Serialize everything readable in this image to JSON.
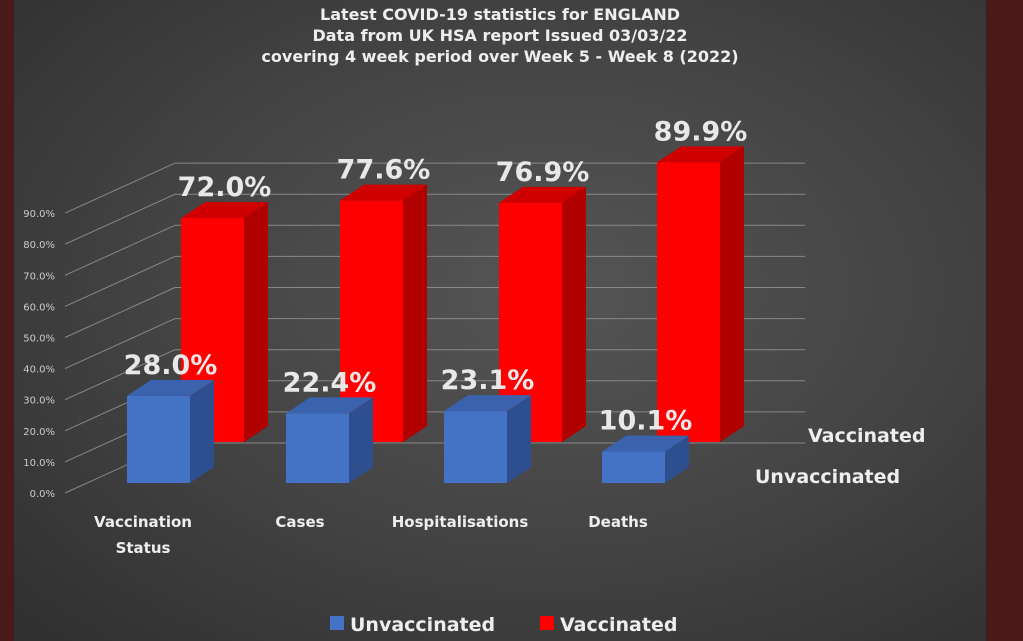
{
  "chart_data": {
    "type": "bar",
    "title": [
      "Latest COVID-19 statistics for ENGLAND",
      "Data from UK HSA report Issued 03/03/22",
      "covering 4 week period over Week 5 - Week 8 (2022)"
    ],
    "categories": [
      [
        "Vaccination",
        "Status"
      ],
      [
        "Cases"
      ],
      [
        "Hospitalisations"
      ],
      [
        "Deaths"
      ]
    ],
    "series": [
      {
        "name": "Unvaccinated",
        "values": [
          28.0,
          22.4,
          23.1,
          10.1
        ],
        "labels": [
          "28.0%",
          "22.4%",
          "23.1%",
          "10.1%"
        ],
        "color": "#4472c4"
      },
      {
        "name": "Vaccinated",
        "values": [
          72.0,
          77.6,
          76.9,
          89.9
        ],
        "labels": [
          "72.0%",
          "77.6%",
          "76.9%",
          "89.9%"
        ],
        "color": "#ff0000"
      }
    ],
    "yticks": [
      "0.0%",
      "10.0%",
      "20.0%",
      "30.0%",
      "40.0%",
      "50.0%",
      "60.0%",
      "70.0%",
      "80.0%",
      "90.0%"
    ],
    "ylim": [
      0,
      90
    ],
    "row_labels": [
      "Vaccinated",
      "Unvaccinated"
    ],
    "legend": {
      "position": "bottom",
      "entries": [
        "Unvaccinated",
        "Vaccinated"
      ]
    },
    "grid": true
  }
}
